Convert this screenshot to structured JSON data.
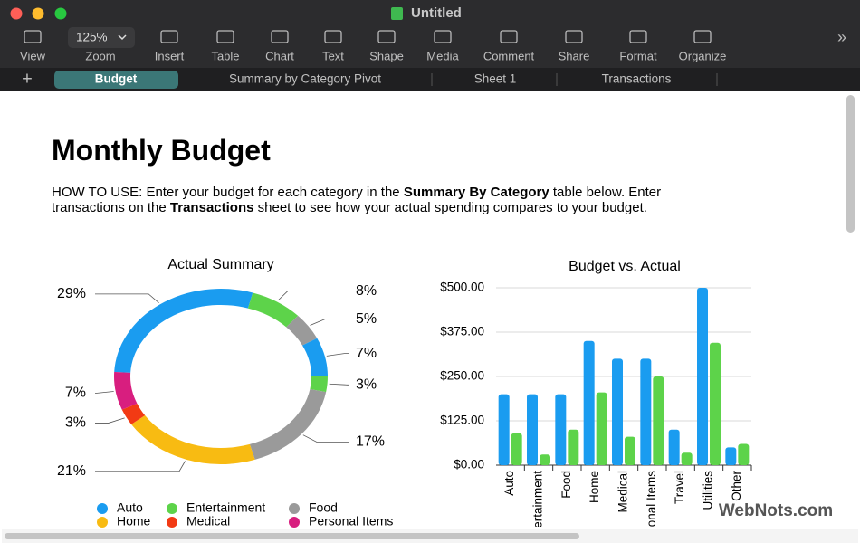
{
  "window": {
    "title": "Untitled"
  },
  "toolbar": {
    "zoom": "125%",
    "items": [
      "View",
      "Zoom",
      "Insert",
      "Table",
      "Chart",
      "Text",
      "Shape",
      "Media",
      "Comment",
      "Share",
      "Format",
      "Organize"
    ]
  },
  "tabs": [
    "Budget",
    "Summary by Category Pivot",
    "Sheet 1",
    "Transactions"
  ],
  "document": {
    "title": "Monthly Budget",
    "instructions": [
      {
        "text": "HOW TO USE: Enter your budget for each category in the ",
        "bold": false
      },
      {
        "text": "Summary By Category",
        "bold": true
      },
      {
        "text": " table below. Enter transactions on the ",
        "bold": false
      },
      {
        "text": "Transactions",
        "bold": true
      },
      {
        "text": " sheet to see how your actual spending compares to your budget.",
        "bold": false
      }
    ]
  },
  "chart_data": [
    {
      "type": "pie",
      "title": "Actual Summary",
      "values": [
        29,
        8,
        5,
        7,
        3,
        17,
        21,
        3,
        7
      ],
      "value_labels": [
        "29%",
        "8%",
        "5%",
        "7%",
        "3%",
        "17%",
        "21%",
        "3%",
        "7%"
      ],
      "colors": [
        "#1a9cf0",
        "#5dd34a",
        "#9a9a9a",
        "#1a9cf0",
        "#5dd34a",
        "#9a9a9a",
        "#f8bb12",
        "#f23a14",
        "#d81e7f"
      ],
      "legend": [
        {
          "name": "Auto",
          "color": "#1a9cf0"
        },
        {
          "name": "Entertainment",
          "color": "#5dd34a"
        },
        {
          "name": "Food",
          "color": "#9a9a9a"
        },
        {
          "name": "Home",
          "color": "#f8bb12"
        },
        {
          "name": "Medical",
          "color": "#f23a14"
        },
        {
          "name": "Personal Items",
          "color": "#d81e7f"
        }
      ]
    },
    {
      "type": "bar",
      "title": "Budget vs. Actual",
      "categories": [
        "Auto",
        "Entertainment",
        "Food",
        "Home",
        "Medical",
        "Personal Items",
        "Travel",
        "Utilities",
        "Other"
      ],
      "series": [
        {
          "color": "#1a9cf0",
          "values": [
            200,
            200,
            200,
            350,
            300,
            300,
            100,
            500,
            50
          ]
        },
        {
          "color": "#5dd34a",
          "values": [
            90,
            30,
            100,
            205,
            80,
            250,
            35,
            345,
            60
          ]
        }
      ],
      "ylim": [
        0,
        500
      ],
      "yticks": [
        {
          "value": 0,
          "label": "$0.00"
        },
        {
          "value": 125,
          "label": "$125.00"
        },
        {
          "value": 250,
          "label": "$250.00"
        },
        {
          "value": 375,
          "label": "$375.00"
        },
        {
          "value": 500,
          "label": "$500.00"
        }
      ],
      "grid": true
    }
  ],
  "watermark": "WebNots.com"
}
